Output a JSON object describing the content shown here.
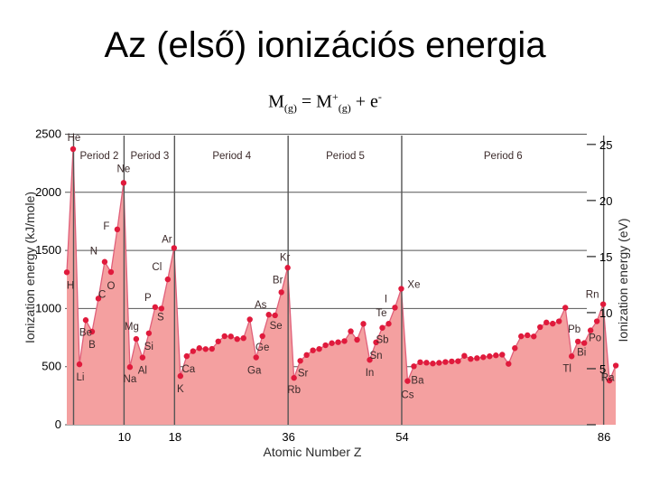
{
  "slide": {
    "title": "Az (első) ionizációs energia",
    "equation": {
      "m1": "M",
      "sub1": "(g)",
      "eq": " = ",
      "m2": "M",
      "sup2": "+",
      "sub2": "(g)",
      "plus": " + e",
      "sup3": "-"
    }
  },
  "chart_data": {
    "type": "area",
    "xlabel": "Atomic Number Z",
    "ylabel": "Ionization energy (kJ/mole)",
    "ylabel_right": "Ionization energy (eV)",
    "xticks": [
      10,
      18,
      36,
      54,
      86
    ],
    "ylim": [
      0,
      2500
    ],
    "yticks": [
      0,
      500,
      1000,
      1500,
      2000,
      2500
    ],
    "y2ticks": [
      5,
      10,
      15,
      20,
      25
    ],
    "xlim": [
      1,
      88
    ],
    "colors": {
      "fill": "#f4a0a0",
      "line": "#e0607a",
      "point": "#e01a3c",
      "grid": "#555555"
    },
    "period_boundaries": [
      2,
      10,
      18,
      36,
      54,
      86
    ],
    "period_labels": [
      "Period 2",
      "Period 3",
      "Period 4",
      "Period 5",
      "Period 6"
    ],
    "element_labels": [
      "He",
      "H",
      "Li",
      "Be",
      "B",
      "C",
      "N",
      "O",
      "F",
      "Ne",
      "Na",
      "Mg",
      "Al",
      "Si",
      "P",
      "S",
      "Cl",
      "Ar",
      "K",
      "Ca",
      "Ga",
      "Ge",
      "As",
      "Se",
      "Br",
      "Kr",
      "Rb",
      "Sr",
      "In",
      "Sn",
      "Sb",
      "Te",
      "I",
      "Xe",
      "Cs",
      "Ba",
      "Tl",
      "Pb",
      "Bi",
      "Po",
      "Rn",
      "Ra"
    ],
    "x": [
      1,
      2,
      3,
      4,
      5,
      6,
      7,
      8,
      9,
      10,
      11,
      12,
      13,
      14,
      15,
      16,
      17,
      18,
      19,
      20,
      21,
      22,
      23,
      24,
      25,
      26,
      27,
      28,
      29,
      30,
      31,
      32,
      33,
      34,
      35,
      36,
      37,
      38,
      39,
      40,
      41,
      42,
      43,
      44,
      45,
      46,
      47,
      48,
      49,
      50,
      51,
      52,
      53,
      54,
      55,
      56,
      57,
      58,
      59,
      60,
      61,
      62,
      63,
      64,
      65,
      66,
      67,
      68,
      69,
      70,
      71,
      72,
      73,
      74,
      75,
      76,
      77,
      78,
      79,
      80,
      81,
      82,
      83,
      84,
      85,
      86,
      87,
      88
    ],
    "values": [
      1312,
      2372,
      520,
      900,
      801,
      1086,
      1402,
      1314,
      1681,
      2081,
      496,
      738,
      578,
      787,
      1012,
      1000,
      1251,
      1521,
      419,
      590,
      633,
      659,
      651,
      653,
      717,
      762,
      760,
      737,
      745,
      906,
      579,
      762,
      947,
      941,
      1140,
      1351,
      403,
      550,
      600,
      640,
      652,
      684,
      702,
      710,
      720,
      804,
      731,
      868,
      558,
      709,
      834,
      869,
      1008,
      1170,
      376,
      503,
      538,
      534,
      527,
      533,
      540,
      545,
      547,
      593,
      566,
      573,
      581,
      589,
      597,
      603,
      524,
      659,
      761,
      770,
      760,
      840,
      880,
      870,
      890,
      1007,
      589,
      716,
      703,
      812,
      890,
      1037,
      380,
      509
    ]
  }
}
